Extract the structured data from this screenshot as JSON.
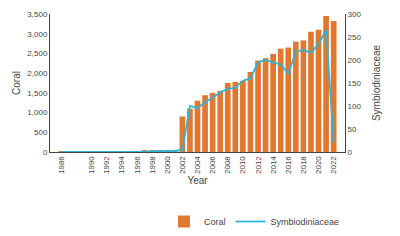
{
  "chart_data": {
    "type": "bar",
    "xlabel": "Year",
    "ylabel": "Coral",
    "y2label": "Symbiodiniaceae",
    "x": [
      1986,
      1987,
      1988,
      1989,
      1990,
      1991,
      1992,
      1993,
      1994,
      1995,
      1996,
      1997,
      1998,
      1999,
      2000,
      2001,
      2002,
      2003,
      2004,
      2005,
      2006,
      2007,
      2008,
      2009,
      2010,
      2011,
      2012,
      2013,
      2014,
      2015,
      2016,
      2017,
      2018,
      2019,
      2020,
      2021,
      2022
    ],
    "xlim": [
      1984.5,
      2023.5
    ],
    "xticks": [
      1986,
      1990,
      1992,
      1994,
      1996,
      1998,
      2000,
      2002,
      2004,
      2006,
      2008,
      2010,
      2012,
      2014,
      2016,
      2018,
      2020,
      2022
    ],
    "ylim": [
      0,
      3500
    ],
    "yticks": [
      0,
      500,
      {
        "value": 1000,
        "label": "1,000"
      },
      {
        "value": 1500,
        "label": "1,500"
      },
      {
        "value": 2000,
        "label": "2,000"
      },
      {
        "value": 2500,
        "label": "2,500"
      },
      {
        "value": 3000,
        "label": "3,000"
      },
      {
        "value": 3500,
        "label": "3,500"
      }
    ],
    "y2lim": [
      0,
      300
    ],
    "y2ticks": [
      0,
      50,
      100,
      150,
      200,
      250,
      300
    ],
    "grid": false,
    "legend": "lower right",
    "series": [
      {
        "name": "Coral",
        "type": "bar",
        "color": "#E07830",
        "values": [
          5,
          5,
          8,
          10,
          10,
          12,
          12,
          15,
          18,
          20,
          25,
          30,
          35,
          40,
          45,
          55,
          900,
          1100,
          1300,
          1440,
          1500,
          1550,
          1750,
          1780,
          1800,
          2030,
          2320,
          2380,
          2490,
          2620,
          2650,
          2800,
          2830,
          3050,
          3100,
          3450,
          3320
        ]
      },
      {
        "name": "Symbiodiniaceae",
        "type": "line",
        "color": "#2BB5D8",
        "axis": "y2",
        "values": [
          0,
          0,
          0,
          0,
          0,
          0,
          0,
          0,
          0,
          0,
          0,
          0,
          2,
          2,
          2,
          2,
          5,
          100,
          95,
          108,
          118,
          130,
          137,
          140,
          155,
          160,
          195,
          200,
          195,
          190,
          170,
          218,
          222,
          215,
          235,
          265,
          20
        ]
      }
    ]
  }
}
